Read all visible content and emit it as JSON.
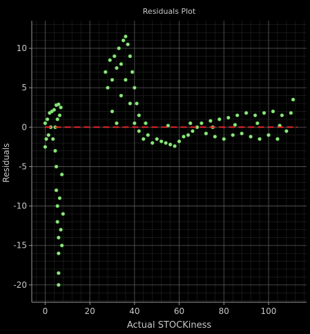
{
  "chart_data": {
    "type": "scatter",
    "title": "Residuals Plot",
    "xlabel": "Actual STOCKiness",
    "ylabel": "Residuals",
    "xlim": [
      -6,
      117
    ],
    "ylim": [
      -22.2,
      13.5
    ],
    "xticks": [
      0,
      20,
      40,
      60,
      80,
      100
    ],
    "yticks": [
      -20,
      -15,
      -10,
      -5,
      0,
      5,
      10
    ],
    "xtick_labels": [
      "0",
      "20",
      "40",
      "60",
      "80",
      "100"
    ],
    "ytick_labels": [
      "-20",
      "-15",
      "-10",
      "-5",
      "0",
      "5",
      "10"
    ],
    "grid": true,
    "minor_grid": true,
    "reference_line": {
      "y": 0,
      "color": "#e8262a",
      "style": "dashed"
    },
    "colors": {
      "background": "#000000",
      "points": "#8fe67e",
      "point_edge": "#5cbf52",
      "grid_major": "#5a5a5a",
      "grid_minor": "#262626",
      "text": "#c8c8c8"
    },
    "series": [
      {
        "points": [
          [
            0,
            -2.5
          ],
          [
            0,
            0.5
          ],
          [
            0.5,
            -1.5
          ],
          [
            1,
            1
          ],
          [
            1.5,
            -1
          ],
          [
            2,
            1.8
          ],
          [
            2.5,
            0
          ],
          [
            3,
            2
          ],
          [
            3.5,
            -1.5
          ],
          [
            4,
            2.2
          ],
          [
            4.5,
            0
          ],
          [
            5,
            2.8
          ],
          [
            5.5,
            1
          ],
          [
            6,
            2.9
          ],
          [
            6.5,
            1.5
          ],
          [
            7,
            2.5
          ],
          [
            4.5,
            -3
          ],
          [
            5,
            -5
          ],
          [
            5,
            -8
          ],
          [
            5.5,
            -10
          ],
          [
            5.5,
            -12
          ],
          [
            6,
            -14
          ],
          [
            6,
            -16
          ],
          [
            6,
            -18.5
          ],
          [
            6,
            -20
          ],
          [
            6.5,
            -9
          ],
          [
            7,
            -13
          ],
          [
            7.5,
            -6
          ],
          [
            7.5,
            -15
          ],
          [
            8,
            -11
          ],
          [
            27,
            7
          ],
          [
            28,
            5
          ],
          [
            29,
            8.5
          ],
          [
            30,
            6
          ],
          [
            31,
            9
          ],
          [
            32,
            7.5
          ],
          [
            33,
            10
          ],
          [
            34,
            8
          ],
          [
            35,
            11
          ],
          [
            36,
            11.5
          ],
          [
            37,
            10.5
          ],
          [
            38,
            9
          ],
          [
            39,
            7
          ],
          [
            40,
            5
          ],
          [
            41,
            3
          ],
          [
            42,
            1.5
          ],
          [
            30,
            2
          ],
          [
            32,
            0.5
          ],
          [
            34,
            4
          ],
          [
            36,
            6
          ],
          [
            38,
            3
          ],
          [
            40,
            0.5
          ],
          [
            42,
            -0.5
          ],
          [
            44,
            -1.5
          ],
          [
            46,
            -1
          ],
          [
            48,
            -2
          ],
          [
            50,
            -1.5
          ],
          [
            52,
            -1.8
          ],
          [
            54,
            -2
          ],
          [
            56,
            -2.2
          ],
          [
            58,
            -2.4
          ],
          [
            60,
            -1.8
          ],
          [
            62,
            -1.2
          ],
          [
            64,
            -1
          ],
          [
            66,
            -0.5
          ],
          [
            68,
            0
          ],
          [
            70,
            0.5
          ],
          [
            72,
            -0.8
          ],
          [
            74,
            0.8
          ],
          [
            76,
            -1.2
          ],
          [
            78,
            1
          ],
          [
            80,
            -1.5
          ],
          [
            82,
            1.2
          ],
          [
            84,
            -1
          ],
          [
            86,
            1.5
          ],
          [
            88,
            -0.8
          ],
          [
            90,
            1.8
          ],
          [
            92,
            -1.2
          ],
          [
            94,
            1.5
          ],
          [
            96,
            -1.5
          ],
          [
            98,
            1.8
          ],
          [
            100,
            -1
          ],
          [
            102,
            2
          ],
          [
            104,
            -1.5
          ],
          [
            106,
            1.5
          ],
          [
            108,
            -0.5
          ],
          [
            110,
            1.8
          ],
          [
            111,
            3.5
          ],
          [
            45,
            0.5
          ],
          [
            55,
            0.2
          ],
          [
            65,
            0.5
          ],
          [
            75,
            0
          ],
          [
            85,
            0.3
          ],
          [
            95,
            0.5
          ],
          [
            105,
            0.2
          ]
        ]
      }
    ]
  }
}
